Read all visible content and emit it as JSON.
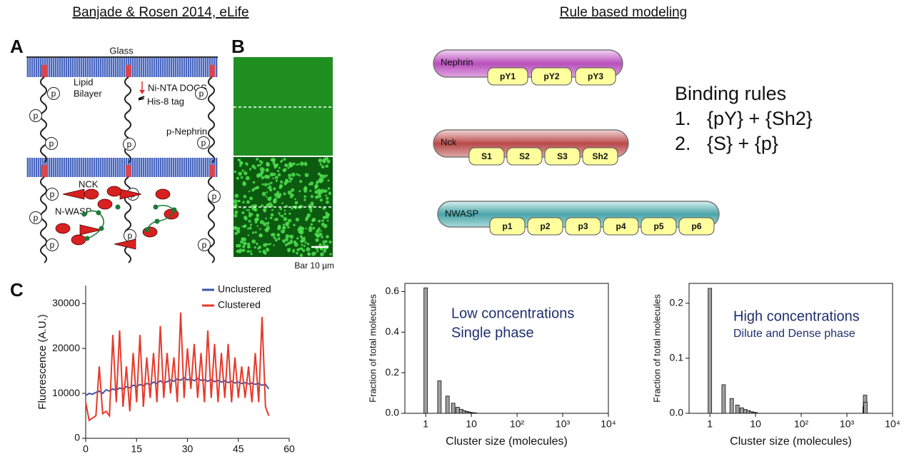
{
  "header": {
    "left": "Banjade & Rosen 2014, eLife",
    "right": "Rule based modeling"
  },
  "panel_labels": [
    "A",
    "B",
    "C"
  ],
  "diagram": {
    "glass": "Glass",
    "lipid": "Lipid",
    "bilayer": "Bilayer",
    "ni_nta": "Ni-NTA DOGS",
    "his_tag": "His-8 tag",
    "p_nephrin": "p-Nephrin",
    "nck": "NCK",
    "nwasp": "N-WASP",
    "phospho": "p"
  },
  "micrograph": {
    "scale_label": "Bar 10 µm"
  },
  "molecules": [
    {
      "name": "Nephrin",
      "sites": [
        "pY1",
        "pY2",
        "pY3"
      ]
    },
    {
      "name": "Nck",
      "sites": [
        "S1",
        "S2",
        "S3",
        "Sh2"
      ]
    },
    {
      "name": "NWASP",
      "sites": [
        "p1",
        "p2",
        "p3",
        "p4",
        "p5",
        "p6"
      ]
    }
  ],
  "rules": {
    "title": "Binding rules",
    "items": [
      {
        "number": "1.",
        "text": "{pY} + {Sh2}"
      },
      {
        "number": "2.",
        "text": "{S} + {p}"
      }
    ]
  },
  "chart_data": [
    {
      "type": "line",
      "ylabel": "Fluorescence (A.U.)",
      "x": [
        0,
        1,
        2,
        3,
        4,
        5,
        6,
        7,
        8,
        9,
        10,
        11,
        12,
        13,
        14,
        15,
        16,
        17,
        18,
        19,
        20,
        21,
        22,
        23,
        24,
        25,
        26,
        27,
        28,
        29,
        30,
        31,
        32,
        33,
        34,
        35,
        36,
        37,
        38,
        39,
        40,
        41,
        42,
        43,
        44,
        45,
        46,
        47,
        48,
        49,
        50,
        51,
        52,
        53,
        54
      ],
      "series": [
        {
          "name": "Unclustered",
          "color": "#3d55a8",
          "values": [
            9500,
            10000,
            9800,
            10200,
            10500,
            10000,
            10800,
            10500,
            11000,
            10700,
            11200,
            11000,
            11500,
            11200,
            11800,
            11500,
            12000,
            11700,
            12200,
            12000,
            12500,
            12200,
            12800,
            12300,
            12600,
            13000,
            12700,
            13200,
            12900,
            13500,
            13000,
            13200,
            12800,
            13300,
            12900,
            13000,
            12700,
            13100,
            12600,
            12900,
            12500,
            12800,
            12400,
            12700,
            12300,
            12500,
            12200,
            12400,
            12100,
            12300,
            12000,
            12200,
            11800,
            12000,
            11000
          ]
        },
        {
          "name": "Clustered",
          "color": "#e8392a",
          "values": [
            8000,
            4000,
            4500,
            5000,
            16000,
            5500,
            6000,
            5000,
            23000,
            8000,
            24000,
            7000,
            16000,
            6000,
            19000,
            8000,
            23000,
            7000,
            18000,
            9000,
            19000,
            8000,
            25000,
            9000,
            19000,
            10000,
            18000,
            8000,
            28000,
            9000,
            20000,
            11000,
            21000,
            9000,
            19000,
            8000,
            24000,
            9000,
            21000,
            8000,
            19000,
            9000,
            21000,
            8000,
            18000,
            9000,
            16000,
            9000,
            16000,
            8000,
            19000,
            8000,
            27000,
            7000,
            5000
          ]
        }
      ],
      "xlim": [
        0,
        60
      ],
      "xticks": [
        0,
        15,
        30,
        45,
        60
      ],
      "ylim": [
        0,
        34000
      ],
      "yticks": [
        0,
        10000,
        20000,
        30000
      ],
      "legend": "upper right"
    },
    {
      "type": "bar",
      "xlabel": "Cluster size (molecules)",
      "ylabel": "Fraction of total molecules",
      "annotations": [
        "Low concentrations",
        "Single phase"
      ],
      "annotation_color": "#1f2f6e",
      "x": [
        1,
        2,
        3,
        4,
        5,
        6,
        7,
        8,
        9,
        10,
        11,
        12
      ],
      "values": [
        0.618,
        0.16,
        0.085,
        0.05,
        0.03,
        0.02,
        0.013,
        0.009,
        0.006,
        0.004,
        0.003,
        0.002
      ],
      "color": "#a0a0a0",
      "log_x": true,
      "box": true,
      "xlim": [
        0.35,
        10000
      ],
      "xticks": [
        1,
        10,
        {
          "value": 100,
          "label": "10²"
        },
        {
          "value": 1000,
          "label": "10³"
        },
        {
          "value": 10000,
          "label": "10⁴"
        }
      ],
      "ylim": [
        0,
        0.64
      ],
      "yticks": [
        {
          "value": 0,
          "label": "0.0"
        },
        0.2,
        0.4,
        0.6
      ]
    },
    {
      "type": "bar",
      "xlabel": "Cluster size (molecules)",
      "ylabel": "Fraction of total molecules",
      "annotations": [
        "High concentrations",
        "Dilute and Dense phase"
      ],
      "annotation_color": "#1f2f6e",
      "x": [
        1,
        2,
        3,
        4,
        5,
        6,
        7,
        8,
        9,
        10,
        2450,
        2500,
        2550
      ],
      "values": [
        0.227,
        0.052,
        0.027,
        0.015,
        0.01,
        0.007,
        0.005,
        0.003,
        0.002,
        0.0015,
        0.012,
        0.033,
        0.02
      ],
      "color": "#a0a0a0",
      "log_x": true,
      "box": true,
      "xlim": [
        0.35,
        10000
      ],
      "xticks": [
        1,
        10,
        {
          "value": 100,
          "label": "10²"
        },
        {
          "value": 1000,
          "label": "10³"
        },
        {
          "value": 10000,
          "label": "10⁴"
        }
      ],
      "ylim": [
        0,
        0.236
      ],
      "yticks": [
        {
          "value": 0,
          "label": "0.0"
        },
        0.1,
        0.2
      ]
    }
  ]
}
